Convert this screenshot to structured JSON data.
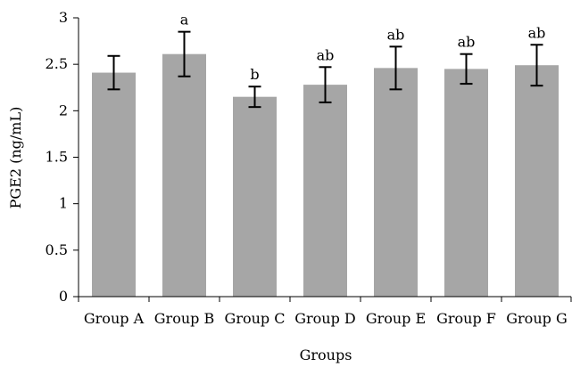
{
  "chart_data": {
    "type": "bar",
    "title": "",
    "xlabel": "Groups",
    "ylabel": "PGE2 (ng/mL)",
    "ylim": [
      0,
      3
    ],
    "yticks": [
      "0",
      "0.5",
      "1",
      "1.5",
      "2",
      "2.5",
      "3"
    ],
    "categories": [
      "Group A",
      "Group B",
      "Group C",
      "Group D",
      "Group E",
      "Group F",
      "Group G"
    ],
    "values": [
      2.41,
      2.61,
      2.15,
      2.28,
      2.46,
      2.45,
      2.49
    ],
    "error": [
      0.18,
      0.24,
      0.11,
      0.19,
      0.23,
      0.16,
      0.22
    ],
    "significance_labels": [
      "",
      "a",
      "b",
      "ab",
      "ab",
      "ab",
      "ab"
    ],
    "grid": false,
    "legend": "none",
    "colors": {
      "bar": "#a6a6a6",
      "axis": "#000000",
      "error_bar": "#000000"
    }
  }
}
